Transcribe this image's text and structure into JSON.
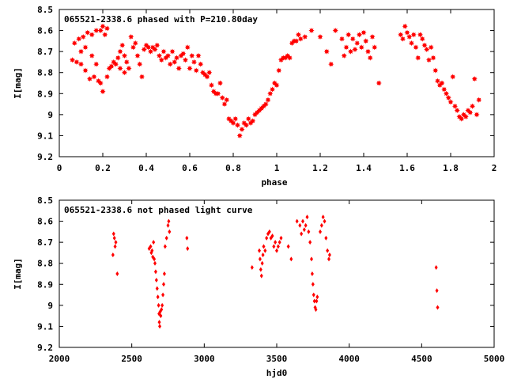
{
  "chart_data": [
    {
      "type": "scatter",
      "title": "065521-2338.6 phased with P=210.80day",
      "xlabel": "phase",
      "ylabel": "I[mag]",
      "xlim": [
        0,
        2
      ],
      "ylim": [
        9.2,
        8.5
      ],
      "y_inverted": true,
      "xticks": [
        0,
        0.2,
        0.4,
        0.6,
        0.8,
        1,
        1.2,
        1.4,
        1.6,
        1.8,
        2
      ],
      "xtick_labels": [
        "0",
        "0.2",
        "0.4",
        "0.6",
        "0.8",
        "1",
        "1.2",
        "1.4",
        "1.6",
        "1.8",
        "2"
      ],
      "yticks": [
        8.5,
        8.6,
        8.7,
        8.8,
        8.9,
        9,
        9.1,
        9.2
      ],
      "ytick_labels": [
        "8.5",
        "8.6",
        "8.7",
        "8.8",
        "8.9",
        "9",
        "9.1",
        "9.2"
      ],
      "grid": false,
      "marker_color": "#ff0000",
      "marker": "star",
      "points": [
        [
          0.06,
          8.74
        ],
        [
          0.07,
          8.66
        ],
        [
          0.08,
          8.75
        ],
        [
          0.09,
          8.64
        ],
        [
          0.1,
          8.76
        ],
        [
          0.1,
          8.7
        ],
        [
          0.11,
          8.63
        ],
        [
          0.12,
          8.79
        ],
        [
          0.12,
          8.68
        ],
        [
          0.13,
          8.61
        ],
        [
          0.14,
          8.83
        ],
        [
          0.15,
          8.62
        ],
        [
          0.15,
          8.72
        ],
        [
          0.16,
          8.82
        ],
        [
          0.17,
          8.6
        ],
        [
          0.17,
          8.76
        ],
        [
          0.18,
          8.84
        ],
        [
          0.19,
          8.6
        ],
        [
          0.19,
          8.85
        ],
        [
          0.2,
          8.58
        ],
        [
          0.2,
          8.89
        ],
        [
          0.21,
          8.62
        ],
        [
          0.22,
          8.59
        ],
        [
          0.22,
          8.82
        ],
        [
          0.23,
          8.78
        ],
        [
          0.24,
          8.77
        ],
        [
          0.25,
          8.75
        ],
        [
          0.26,
          8.76
        ],
        [
          0.27,
          8.73
        ],
        [
          0.28,
          8.7
        ],
        [
          0.28,
          8.78
        ],
        [
          0.29,
          8.67
        ],
        [
          0.3,
          8.72
        ],
        [
          0.3,
          8.8
        ],
        [
          0.31,
          8.75
        ],
        [
          0.32,
          8.78
        ],
        [
          0.33,
          8.63
        ],
        [
          0.34,
          8.68
        ],
        [
          0.35,
          8.66
        ],
        [
          0.36,
          8.72
        ],
        [
          0.37,
          8.76
        ],
        [
          0.38,
          8.82
        ],
        [
          0.39,
          8.69
        ],
        [
          0.4,
          8.67
        ],
        [
          0.41,
          8.68
        ],
        [
          0.42,
          8.7
        ],
        [
          0.43,
          8.68
        ],
        [
          0.44,
          8.69
        ],
        [
          0.45,
          8.67
        ],
        [
          0.46,
          8.72
        ],
        [
          0.47,
          8.74
        ],
        [
          0.48,
          8.7
        ],
        [
          0.49,
          8.73
        ],
        [
          0.5,
          8.72
        ],
        [
          0.51,
          8.76
        ],
        [
          0.52,
          8.7
        ],
        [
          0.53,
          8.75
        ],
        [
          0.54,
          8.73
        ],
        [
          0.55,
          8.78
        ],
        [
          0.56,
          8.72
        ],
        [
          0.57,
          8.71
        ],
        [
          0.58,
          8.74
        ],
        [
          0.59,
          8.68
        ],
        [
          0.6,
          8.78
        ],
        [
          0.61,
          8.72
        ],
        [
          0.62,
          8.75
        ],
        [
          0.63,
          8.79
        ],
        [
          0.64,
          8.72
        ],
        [
          0.65,
          8.76
        ],
        [
          0.66,
          8.8
        ],
        [
          0.67,
          8.81
        ],
        [
          0.68,
          8.82
        ],
        [
          0.69,
          8.8
        ],
        [
          0.7,
          8.86
        ],
        [
          0.71,
          8.89
        ],
        [
          0.72,
          8.9
        ],
        [
          0.73,
          8.9
        ],
        [
          0.74,
          8.85
        ],
        [
          0.75,
          8.92
        ],
        [
          0.76,
          8.95
        ],
        [
          0.77,
          8.93
        ],
        [
          0.78,
          9.02
        ],
        [
          0.79,
          9.03
        ],
        [
          0.8,
          9.04
        ],
        [
          0.81,
          9.02
        ],
        [
          0.82,
          9.05
        ],
        [
          0.83,
          9.1
        ],
        [
          0.84,
          9.07
        ],
        [
          0.85,
          9.04
        ],
        [
          0.86,
          9.05
        ],
        [
          0.87,
          9.02
        ],
        [
          0.88,
          9.04
        ],
        [
          0.89,
          9.03
        ],
        [
          0.9,
          9.0
        ],
        [
          0.91,
          8.99
        ],
        [
          0.92,
          8.98
        ],
        [
          0.93,
          8.97
        ],
        [
          0.94,
          8.96
        ],
        [
          0.95,
          8.95
        ],
        [
          0.96,
          8.93
        ],
        [
          0.97,
          8.9
        ],
        [
          0.98,
          8.88
        ],
        [
          0.99,
          8.85
        ],
        [
          1.0,
          8.86
        ],
        [
          1.01,
          8.79
        ],
        [
          1.02,
          8.74
        ],
        [
          1.03,
          8.73
        ],
        [
          1.04,
          8.73
        ],
        [
          1.05,
          8.72
        ],
        [
          1.06,
          8.73
        ],
        [
          1.07,
          8.66
        ],
        [
          1.08,
          8.65
        ],
        [
          1.09,
          8.65
        ],
        [
          1.1,
          8.62
        ],
        [
          1.11,
          8.64
        ],
        [
          1.13,
          8.63
        ],
        [
          1.16,
          8.6
        ],
        [
          1.2,
          8.63
        ],
        [
          1.23,
          8.7
        ],
        [
          1.25,
          8.76
        ],
        [
          1.27,
          8.6
        ],
        [
          1.3,
          8.64
        ],
        [
          1.31,
          8.72
        ],
        [
          1.32,
          8.68
        ],
        [
          1.33,
          8.62
        ],
        [
          1.34,
          8.7
        ],
        [
          1.35,
          8.64
        ],
        [
          1.36,
          8.69
        ],
        [
          1.37,
          8.66
        ],
        [
          1.38,
          8.62
        ],
        [
          1.39,
          8.68
        ],
        [
          1.4,
          8.61
        ],
        [
          1.41,
          8.65
        ],
        [
          1.42,
          8.7
        ],
        [
          1.43,
          8.73
        ],
        [
          1.44,
          8.63
        ],
        [
          1.45,
          8.68
        ],
        [
          1.47,
          8.85
        ],
        [
          1.57,
          8.62
        ],
        [
          1.58,
          8.64
        ],
        [
          1.59,
          8.58
        ],
        [
          1.6,
          8.61
        ],
        [
          1.61,
          8.63
        ],
        [
          1.62,
          8.66
        ],
        [
          1.63,
          8.62
        ],
        [
          1.64,
          8.68
        ],
        [
          1.65,
          8.73
        ],
        [
          1.66,
          8.62
        ],
        [
          1.67,
          8.64
        ],
        [
          1.68,
          8.67
        ],
        [
          1.69,
          8.69
        ],
        [
          1.7,
          8.74
        ],
        [
          1.71,
          8.68
        ],
        [
          1.72,
          8.73
        ],
        [
          1.73,
          8.79
        ],
        [
          1.74,
          8.84
        ],
        [
          1.75,
          8.86
        ],
        [
          1.76,
          8.85
        ],
        [
          1.77,
          8.88
        ],
        [
          1.78,
          8.9
        ],
        [
          1.79,
          8.92
        ],
        [
          1.8,
          8.94
        ],
        [
          1.81,
          8.82
        ],
        [
          1.82,
          8.96
        ],
        [
          1.83,
          8.98
        ],
        [
          1.84,
          9.01
        ],
        [
          1.85,
          9.02
        ],
        [
          1.86,
          9.0
        ],
        [
          1.87,
          9.01
        ],
        [
          1.88,
          8.98
        ],
        [
          1.89,
          8.99
        ],
        [
          1.9,
          8.96
        ],
        [
          1.91,
          8.83
        ],
        [
          1.92,
          9.0
        ],
        [
          1.93,
          8.93
        ]
      ]
    },
    {
      "type": "scatter",
      "title": "065521-2338.6 not phased light curve",
      "xlabel": "hjd0",
      "ylabel": "I[mag]",
      "xlim": [
        2000,
        5000
      ],
      "ylim": [
        9.2,
        8.5
      ],
      "y_inverted": true,
      "xticks": [
        2000,
        2500,
        3000,
        3500,
        4000,
        4500,
        5000
      ],
      "xtick_labels": [
        "2000",
        "2500",
        "3000",
        "3500",
        "4000",
        "4500",
        "5000"
      ],
      "yticks": [
        8.5,
        8.6,
        8.7,
        8.8,
        8.9,
        9,
        9.1,
        9.2
      ],
      "ytick_labels": [
        "8.5",
        "8.6",
        "8.7",
        "8.8",
        "8.9",
        "9",
        "9.1",
        "9.2"
      ],
      "grid": false,
      "marker_color": "#ff0000",
      "marker": "diamond",
      "points": [
        [
          2370,
          8.76
        ],
        [
          2375,
          8.66
        ],
        [
          2380,
          8.68
        ],
        [
          2385,
          8.72
        ],
        [
          2390,
          8.7
        ],
        [
          2400,
          8.85
        ],
        [
          2620,
          8.73
        ],
        [
          2630,
          8.72
        ],
        [
          2635,
          8.75
        ],
        [
          2640,
          8.74
        ],
        [
          2645,
          8.77
        ],
        [
          2650,
          8.7
        ],
        [
          2655,
          8.78
        ],
        [
          2660,
          8.8
        ],
        [
          2665,
          8.84
        ],
        [
          2670,
          8.88
        ],
        [
          2675,
          8.92
        ],
        [
          2680,
          8.96
        ],
        [
          2685,
          9.0
        ],
        [
          2688,
          9.04
        ],
        [
          2690,
          9.08
        ],
        [
          2693,
          9.1
        ],
        [
          2696,
          9.03
        ],
        [
          2700,
          9.05
        ],
        [
          2705,
          9.02
        ],
        [
          2710,
          9.0
        ],
        [
          2715,
          8.95
        ],
        [
          2720,
          8.9
        ],
        [
          2725,
          8.85
        ],
        [
          2730,
          8.72
        ],
        [
          2740,
          8.68
        ],
        [
          2750,
          8.62
        ],
        [
          2755,
          8.6
        ],
        [
          2760,
          8.65
        ],
        [
          2880,
          8.68
        ],
        [
          2885,
          8.73
        ],
        [
          3330,
          8.82
        ],
        [
          3380,
          8.74
        ],
        [
          3385,
          8.78
        ],
        [
          3390,
          8.83
        ],
        [
          3395,
          8.86
        ],
        [
          3400,
          8.8
        ],
        [
          3405,
          8.76
        ],
        [
          3410,
          8.72
        ],
        [
          3420,
          8.74
        ],
        [
          3430,
          8.68
        ],
        [
          3440,
          8.66
        ],
        [
          3450,
          8.65
        ],
        [
          3460,
          8.68
        ],
        [
          3470,
          8.67
        ],
        [
          3480,
          8.72
        ],
        [
          3490,
          8.7
        ],
        [
          3500,
          8.74
        ],
        [
          3510,
          8.72
        ],
        [
          3520,
          8.7
        ],
        [
          3530,
          8.68
        ],
        [
          3580,
          8.72
        ],
        [
          3600,
          8.78
        ],
        [
          3640,
          8.6
        ],
        [
          3660,
          8.62
        ],
        [
          3670,
          8.66
        ],
        [
          3680,
          8.6
        ],
        [
          3690,
          8.64
        ],
        [
          3700,
          8.62
        ],
        [
          3710,
          8.58
        ],
        [
          3720,
          8.65
        ],
        [
          3730,
          8.7
        ],
        [
          3740,
          8.78
        ],
        [
          3745,
          8.85
        ],
        [
          3750,
          8.9
        ],
        [
          3755,
          8.95
        ],
        [
          3760,
          8.98
        ],
        [
          3765,
          9.01
        ],
        [
          3770,
          9.02
        ],
        [
          3775,
          8.98
        ],
        [
          3780,
          8.96
        ],
        [
          3800,
          8.65
        ],
        [
          3810,
          8.62
        ],
        [
          3820,
          8.58
        ],
        [
          3830,
          8.6
        ],
        [
          3840,
          8.68
        ],
        [
          3850,
          8.74
        ],
        [
          3860,
          8.78
        ],
        [
          3865,
          8.76
        ],
        [
          4600,
          8.82
        ],
        [
          4605,
          8.93
        ],
        [
          4610,
          9.01
        ]
      ]
    }
  ]
}
